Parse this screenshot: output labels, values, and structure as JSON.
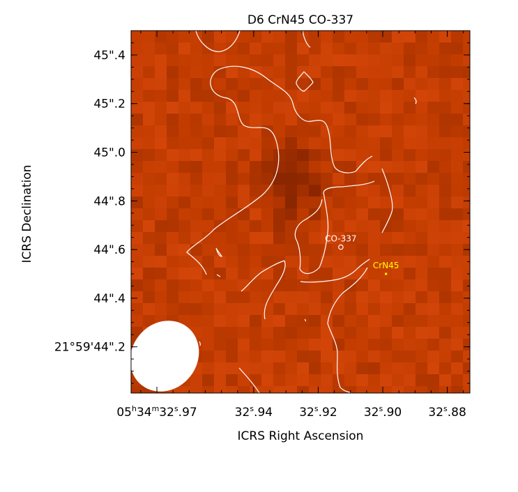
{
  "chart_data": {
    "type": "heatmap",
    "title": "D6 CrN45 CO-337",
    "xlabel": "ICRS Right Ascension",
    "ylabel": "ICRS Declination",
    "x_ticks": [
      {
        "value": 32.97,
        "label": "05h34m32s.97"
      },
      {
        "value": 32.94,
        "label": "32s.94"
      },
      {
        "value": 32.92,
        "label": "32s.92"
      },
      {
        "value": 32.9,
        "label": "32s.90"
      },
      {
        "value": 32.88,
        "label": "32s.88"
      }
    ],
    "y_ticks": [
      {
        "value": 44.2,
        "label": "21°59'44\".2"
      },
      {
        "value": 44.4,
        "label": "44\".4"
      },
      {
        "value": 44.6,
        "label": "44\".6"
      },
      {
        "value": 44.8,
        "label": "44\".8"
      },
      {
        "value": 45.0,
        "label": "45\".0"
      },
      {
        "value": 45.2,
        "label": "45\".2"
      },
      {
        "value": 45.4,
        "label": "45\".4"
      }
    ],
    "xlim": [
      32.978,
      32.873
    ],
    "ylim": [
      44.01,
      45.5
    ],
    "sources": [
      {
        "label": "CO-337",
        "ra_s": 32.913,
        "dec_s": 44.61,
        "marker": "circle",
        "color": "#ffffff"
      },
      {
        "label": "CrN45",
        "ra_s": 32.899,
        "dec_s": 44.5,
        "marker": "square",
        "color": "#ffff00"
      }
    ],
    "beam": {
      "color": "#ffffff"
    },
    "colormap": {
      "low": "#8a2600",
      "mid": "#c23c00",
      "high": "#e04c10"
    },
    "contour_color": "#ffffff",
    "grid": false
  }
}
